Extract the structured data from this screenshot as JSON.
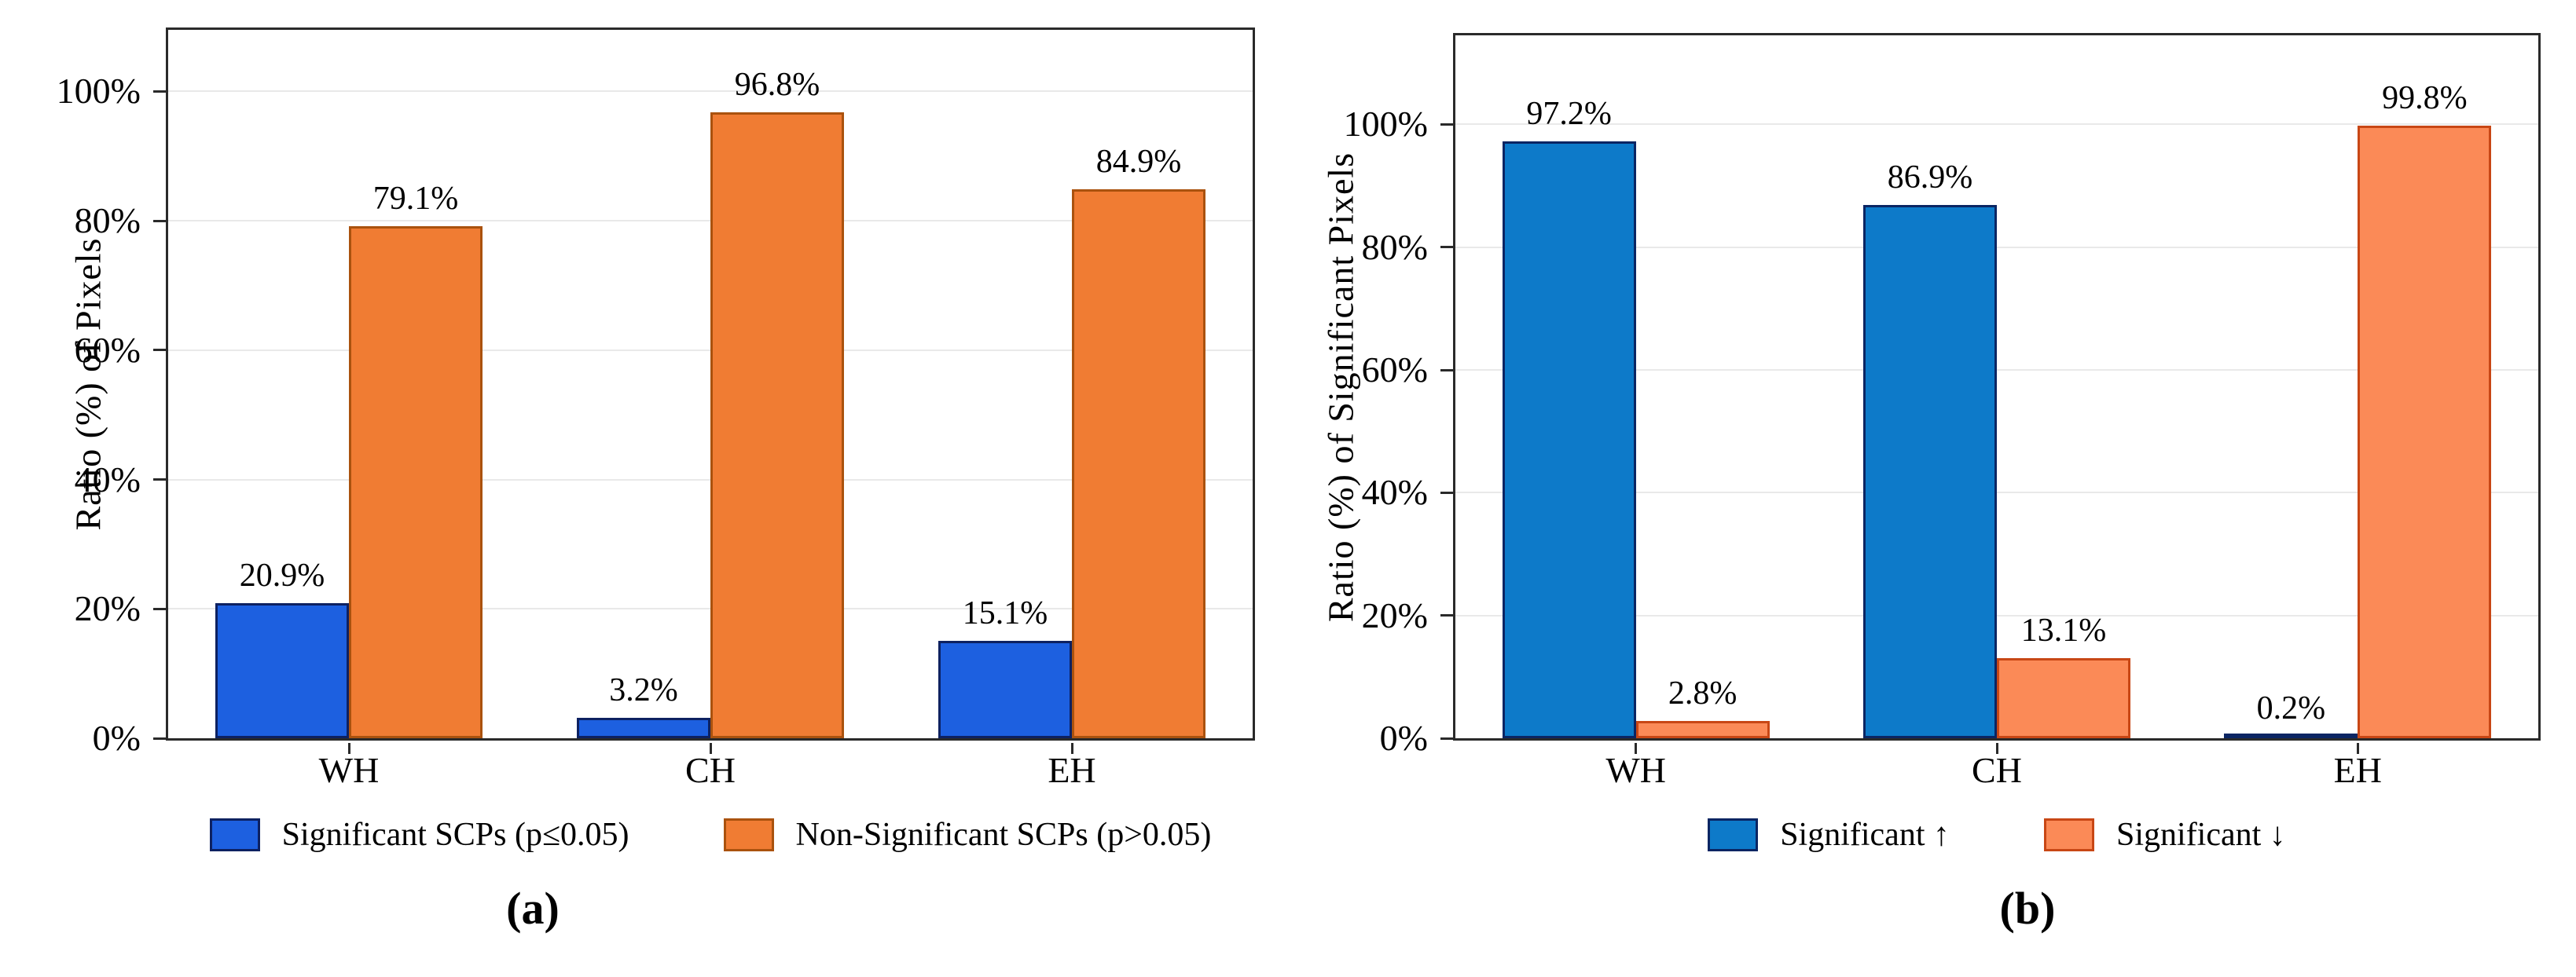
{
  "chart_data": [
    {
      "id": "a",
      "type": "bar",
      "caption": "(a)",
      "ylabel": "Ratio (%) of Pixels",
      "categories": [
        "WH",
        "CH",
        "EH"
      ],
      "series": [
        {
          "name": "Significant SCPs (p≤0.05)",
          "values": [
            20.9,
            3.2,
            15.1
          ],
          "fill": "#1d60e0",
          "border": "#0d2161"
        },
        {
          "name": "Non-Significant SCPs (p>0.05)",
          "values": [
            79.1,
            96.8,
            84.9
          ],
          "fill": "#f07c33",
          "border": "#aa520e"
        }
      ],
      "value_labels": [
        [
          "20.9%",
          "3.2%",
          "15.1%"
        ],
        [
          "79.1%",
          "96.8%",
          "84.9%"
        ]
      ],
      "yticks": [
        0,
        20,
        40,
        60,
        80,
        100
      ],
      "ytick_labels": [
        "0%",
        "20%",
        "40%",
        "60%",
        "80%",
        "100%"
      ],
      "ylim": [
        0,
        109.5
      ],
      "grid": true,
      "legend_position": "bottom"
    },
    {
      "id": "b",
      "type": "bar",
      "caption": "(b)",
      "ylabel": "Ratio (%) of Significant Pixels",
      "categories": [
        "WH",
        "CH",
        "EH"
      ],
      "series": [
        {
          "name": "Significant ↑",
          "values": [
            97.2,
            86.9,
            0.2
          ],
          "fill": "#0d7ac9",
          "border": "#0a2563"
        },
        {
          "name": "Significant ↓",
          "values": [
            2.8,
            13.1,
            99.8
          ],
          "fill": "#fb8a57",
          "border": "#c84715"
        }
      ],
      "value_labels": [
        [
          "97.2%",
          "86.9%",
          "0.2%"
        ],
        [
          "2.8%",
          "13.1%",
          "99.8%"
        ]
      ],
      "yticks": [
        0,
        20,
        40,
        60,
        80,
        100
      ],
      "ytick_labels": [
        "0%",
        "20%",
        "40%",
        "60%",
        "80%",
        "100%"
      ],
      "ylim": [
        0,
        114.5
      ],
      "grid": true,
      "legend_position": "bottom"
    }
  ]
}
